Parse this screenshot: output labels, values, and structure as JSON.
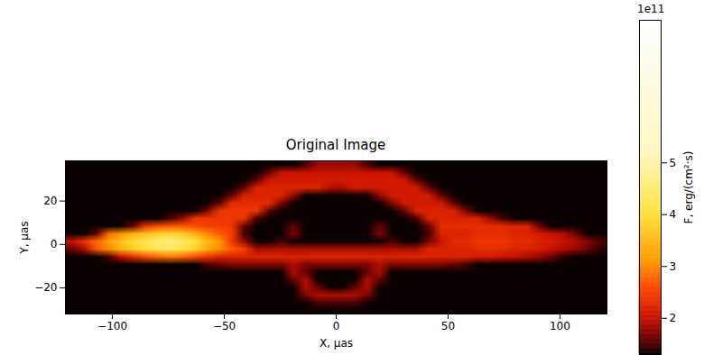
{
  "chart_data": {
    "type": "heatmap",
    "title": "Original Image",
    "x_label": "X, μas",
    "y_label": "Y, μas",
    "xlim": [
      -121,
      121
    ],
    "ylim": [
      -32,
      38.5
    ],
    "xticks": [
      -100,
      -50,
      0,
      50,
      100
    ],
    "yticks": [
      -20,
      0,
      20
    ],
    "colorbar_label": "F, erg/(cm²·s)",
    "colorbar_offset": "1e11",
    "colorbar_range": [
      1.3,
      7.75
    ],
    "colorbar_ticks": [
      2,
      3,
      4,
      5
    ],
    "cells": [
      [
        1.3,
        1.3,
        1.3,
        1.3,
        1.3,
        1.3,
        1.3,
        1.3,
        1.3,
        1.3,
        1.3,
        1.3,
        1.3,
        1.3,
        1.3,
        1.3,
        1.3,
        1.3,
        1.3,
        1.5,
        1.8,
        1.8,
        1.8,
        1.8,
        1.5,
        1.3,
        1.3,
        1.3,
        1.3,
        1.3,
        1.3,
        1.3,
        1.3,
        1.3,
        1.3,
        1.3,
        1.3,
        1.3,
        1.3,
        1.3,
        1.3,
        1.3,
        1.3,
        1.3
      ],
      [
        1.3,
        1.3,
        1.3,
        1.3,
        1.3,
        1.3,
        1.3,
        1.3,
        1.3,
        1.3,
        1.3,
        1.3,
        1.3,
        1.3,
        1.3,
        1.3,
        1.6,
        2.0,
        2.0,
        2.0,
        2.0,
        2.0,
        2.0,
        2.0,
        2.0,
        2.0,
        2.0,
        1.6,
        1.3,
        1.3,
        1.3,
        1.3,
        1.3,
        1.3,
        1.3,
        1.3,
        1.3,
        1.3,
        1.3,
        1.3,
        1.3,
        1.3,
        1.3,
        1.3
      ],
      [
        1.3,
        1.3,
        1.3,
        1.3,
        1.3,
        1.3,
        1.3,
        1.3,
        1.3,
        1.3,
        1.3,
        1.3,
        1.3,
        1.3,
        1.3,
        1.6,
        2.1,
        2.1,
        2.1,
        2.1,
        2.1,
        2.1,
        2.1,
        2.1,
        2.1,
        2.1,
        2.1,
        2.1,
        1.6,
        1.3,
        1.3,
        1.3,
        1.3,
        1.3,
        1.3,
        1.3,
        1.3,
        1.3,
        1.3,
        1.3,
        1.3,
        1.3,
        1.3,
        1.3
      ],
      [
        1.3,
        1.3,
        1.3,
        1.3,
        1.3,
        1.3,
        1.3,
        1.3,
        1.3,
        1.3,
        1.3,
        1.3,
        1.3,
        1.3,
        1.6,
        2.2,
        2.2,
        2.2,
        2.2,
        2.2,
        2.2,
        1.9,
        1.9,
        2.1,
        2.1,
        2.1,
        2.1,
        2.1,
        2.1,
        1.6,
        1.3,
        1.3,
        1.3,
        1.3,
        1.3,
        1.3,
        1.3,
        1.3,
        1.3,
        1.3,
        1.3,
        1.3,
        1.3,
        1.3
      ],
      [
        1.3,
        1.3,
        1.3,
        1.3,
        1.3,
        1.3,
        1.3,
        1.3,
        1.3,
        1.3,
        1.3,
        1.3,
        1.3,
        1.6,
        2.2,
        2.2,
        2.2,
        2.2,
        1.8,
        1.3,
        1.3,
        1.3,
        1.3,
        1.3,
        1.3,
        1.8,
        2.1,
        2.1,
        2.1,
        2.1,
        1.6,
        1.3,
        1.3,
        1.3,
        1.3,
        1.3,
        1.3,
        1.3,
        1.3,
        1.3,
        1.3,
        1.3,
        1.3,
        1.3
      ],
      [
        1.3,
        1.3,
        1.3,
        1.3,
        1.3,
        1.3,
        1.3,
        1.3,
        1.3,
        1.3,
        1.3,
        1.3,
        1.6,
        2.3,
        2.3,
        2.3,
        2.3,
        1.7,
        1.3,
        1.3,
        1.3,
        1.3,
        1.3,
        1.3,
        1.3,
        1.3,
        1.7,
        2.1,
        2.1,
        2.1,
        2.1,
        1.6,
        1.3,
        1.3,
        1.3,
        1.3,
        1.3,
        1.3,
        1.3,
        1.3,
        1.3,
        1.3,
        1.3,
        1.3
      ],
      [
        1.3,
        1.3,
        1.3,
        1.3,
        1.3,
        1.3,
        1.3,
        1.3,
        1.3,
        1.3,
        1.3,
        1.7,
        2.4,
        2.4,
        2.4,
        2.4,
        1.6,
        1.3,
        1.3,
        1.3,
        1.3,
        1.3,
        1.3,
        1.3,
        1.3,
        1.3,
        1.3,
        1.6,
        2.2,
        2.2,
        2.2,
        2.2,
        1.7,
        1.3,
        1.3,
        1.3,
        1.3,
        1.3,
        1.3,
        1.3,
        1.3,
        1.3,
        1.3,
        1.3
      ],
      [
        1.3,
        1.3,
        1.3,
        1.3,
        1.3,
        1.3,
        1.3,
        1.3,
        1.5,
        1.8,
        2.4,
        2.4,
        2.4,
        2.4,
        2.4,
        1.5,
        1.3,
        1.3,
        1.3,
        1.3,
        1.3,
        1.3,
        1.3,
        1.3,
        1.3,
        1.3,
        1.3,
        1.3,
        1.5,
        2.2,
        2.2,
        2.2,
        2.2,
        2.2,
        1.8,
        1.5,
        1.3,
        1.3,
        1.3,
        1.3,
        1.3,
        1.3,
        1.3,
        1.3
      ],
      [
        1.3,
        1.3,
        1.3,
        1.3,
        1.3,
        1.6,
        2.4,
        2.6,
        2.7,
        2.7,
        2.6,
        2.5,
        2.5,
        2.4,
        1.6,
        1.3,
        1.3,
        1.3,
        1.6,
        1.3,
        1.3,
        1.3,
        1.3,
        1.3,
        1.3,
        1.6,
        1.3,
        1.3,
        1.3,
        1.6,
        2.3,
        2.3,
        2.3,
        2.3,
        2.3,
        2.3,
        2.2,
        2.2,
        1.6,
        1.3,
        1.3,
        1.3,
        1.3,
        1.3
      ],
      [
        1.3,
        1.3,
        1.6,
        2.8,
        3.1,
        3.4,
        3.6,
        3.8,
        3.9,
        3.7,
        3.4,
        3.0,
        2.7,
        2.5,
        1.5,
        1.3,
        1.3,
        1.3,
        1.7,
        1.3,
        1.3,
        1.3,
        1.3,
        1.3,
        1.3,
        1.7,
        1.3,
        1.3,
        1.3,
        1.5,
        2.2,
        2.2,
        2.2,
        2.3,
        2.3,
        2.3,
        2.2,
        2.2,
        2.1,
        2.0,
        1.9,
        1.6,
        1.3,
        1.3
      ],
      [
        2.0,
        2.4,
        2.8,
        3.2,
        3.6,
        3.9,
        4.2,
        4.5,
        4.6,
        4.4,
        4.0,
        3.5,
        3.1,
        2.4,
        1.8,
        1.3,
        1.3,
        1.5,
        1.3,
        1.3,
        1.3,
        1.3,
        1.3,
        1.3,
        1.3,
        1.3,
        1.5,
        1.3,
        1.3,
        1.7,
        2.0,
        2.3,
        2.3,
        2.4,
        2.4,
        2.4,
        2.3,
        2.3,
        2.2,
        2.1,
        2.0,
        1.9,
        1.7,
        1.5
      ],
      [
        1.6,
        1.9,
        2.7,
        3.0,
        3.4,
        3.7,
        4.0,
        4.2,
        4.3,
        4.1,
        3.8,
        3.3,
        3.0,
        2.7,
        2.5,
        1.9,
        1.9,
        1.9,
        1.9,
        1.9,
        1.9,
        1.9,
        1.9,
        1.9,
        1.9,
        1.9,
        1.9,
        1.9,
        1.9,
        2.2,
        2.2,
        2.2,
        2.2,
        2.3,
        2.3,
        2.3,
        2.2,
        2.2,
        2.1,
        2.0,
        1.9,
        1.8,
        1.6,
        1.4
      ],
      [
        1.3,
        1.3,
        1.3,
        1.5,
        2.0,
        2.3,
        2.6,
        2.8,
        2.9,
        2.8,
        2.6,
        2.4,
        2.2,
        2.2,
        2.2,
        2.2,
        2.2,
        2.2,
        2.2,
        2.2,
        2.2,
        2.2,
        2.2,
        2.2,
        2.2,
        2.2,
        2.2,
        2.2,
        2.2,
        2.2,
        2.2,
        2.2,
        2.2,
        2.1,
        2.1,
        2.0,
        2.0,
        1.9,
        1.8,
        1.6,
        1.4,
        1.3,
        1.3,
        1.3
      ],
      [
        1.3,
        1.3,
        1.3,
        1.3,
        1.3,
        1.3,
        1.3,
        1.3,
        1.3,
        1.3,
        1.3,
        1.5,
        1.6,
        1.7,
        1.7,
        1.7,
        1.7,
        1.7,
        1.9,
        1.7,
        1.7,
        1.7,
        1.7,
        1.7,
        1.7,
        1.9,
        1.7,
        1.7,
        1.7,
        1.7,
        1.7,
        1.6,
        1.5,
        1.3,
        1.3,
        1.3,
        1.3,
        1.3,
        1.3,
        1.3,
        1.3,
        1.3,
        1.3,
        1.3
      ],
      [
        1.3,
        1.3,
        1.3,
        1.3,
        1.3,
        1.3,
        1.3,
        1.3,
        1.3,
        1.3,
        1.3,
        1.3,
        1.3,
        1.3,
        1.3,
        1.3,
        1.3,
        1.3,
        1.9,
        1.6,
        1.3,
        1.3,
        1.3,
        1.3,
        1.6,
        1.9,
        1.3,
        1.3,
        1.3,
        1.3,
        1.3,
        1.3,
        1.3,
        1.3,
        1.3,
        1.3,
        1.3,
        1.3,
        1.3,
        1.3,
        1.3,
        1.3,
        1.3,
        1.3
      ],
      [
        1.3,
        1.3,
        1.3,
        1.3,
        1.3,
        1.3,
        1.3,
        1.3,
        1.3,
        1.3,
        1.3,
        1.3,
        1.3,
        1.3,
        1.3,
        1.3,
        1.3,
        1.3,
        1.6,
        1.9,
        1.3,
        1.3,
        1.3,
        1.3,
        1.9,
        1.6,
        1.3,
        1.3,
        1.3,
        1.3,
        1.3,
        1.3,
        1.3,
        1.3,
        1.3,
        1.3,
        1.3,
        1.3,
        1.3,
        1.3,
        1.3,
        1.3,
        1.3,
        1.3
      ],
      [
        1.3,
        1.3,
        1.3,
        1.3,
        1.3,
        1.3,
        1.3,
        1.3,
        1.3,
        1.3,
        1.3,
        1.3,
        1.3,
        1.3,
        1.3,
        1.3,
        1.3,
        1.3,
        1.3,
        1.9,
        1.6,
        1.3,
        1.3,
        1.6,
        1.9,
        1.3,
        1.3,
        1.3,
        1.3,
        1.3,
        1.3,
        1.3,
        1.3,
        1.3,
        1.3,
        1.3,
        1.3,
        1.3,
        1.3,
        1.3,
        1.3,
        1.3,
        1.3,
        1.3
      ],
      [
        1.3,
        1.3,
        1.3,
        1.3,
        1.3,
        1.3,
        1.3,
        1.3,
        1.3,
        1.3,
        1.3,
        1.3,
        1.3,
        1.3,
        1.3,
        1.3,
        1.3,
        1.3,
        1.3,
        1.7,
        1.9,
        1.9,
        1.9,
        1.9,
        1.7,
        1.3,
        1.3,
        1.3,
        1.3,
        1.3,
        1.3,
        1.3,
        1.3,
        1.3,
        1.3,
        1.3,
        1.3,
        1.3,
        1.3,
        1.3,
        1.3,
        1.3,
        1.3,
        1.3
      ],
      [
        1.3,
        1.3,
        1.3,
        1.3,
        1.3,
        1.3,
        1.3,
        1.3,
        1.3,
        1.3,
        1.3,
        1.3,
        1.3,
        1.3,
        1.3,
        1.3,
        1.3,
        1.3,
        1.3,
        1.3,
        1.5,
        1.5,
        1.5,
        1.5,
        1.3,
        1.3,
        1.3,
        1.3,
        1.3,
        1.3,
        1.3,
        1.3,
        1.3,
        1.3,
        1.3,
        1.3,
        1.3,
        1.3,
        1.3,
        1.3,
        1.3,
        1.3,
        1.3,
        1.3
      ],
      [
        1.3,
        1.3,
        1.3,
        1.3,
        1.3,
        1.3,
        1.3,
        1.3,
        1.3,
        1.3,
        1.3,
        1.3,
        1.3,
        1.3,
        1.3,
        1.3,
        1.3,
        1.3,
        1.3,
        1.3,
        1.3,
        1.3,
        1.3,
        1.3,
        1.3,
        1.3,
        1.3,
        1.3,
        1.3,
        1.3,
        1.3,
        1.3,
        1.3,
        1.3,
        1.3,
        1.3,
        1.3,
        1.3,
        1.3,
        1.3,
        1.3,
        1.3,
        1.3,
        1.3
      ]
    ]
  }
}
